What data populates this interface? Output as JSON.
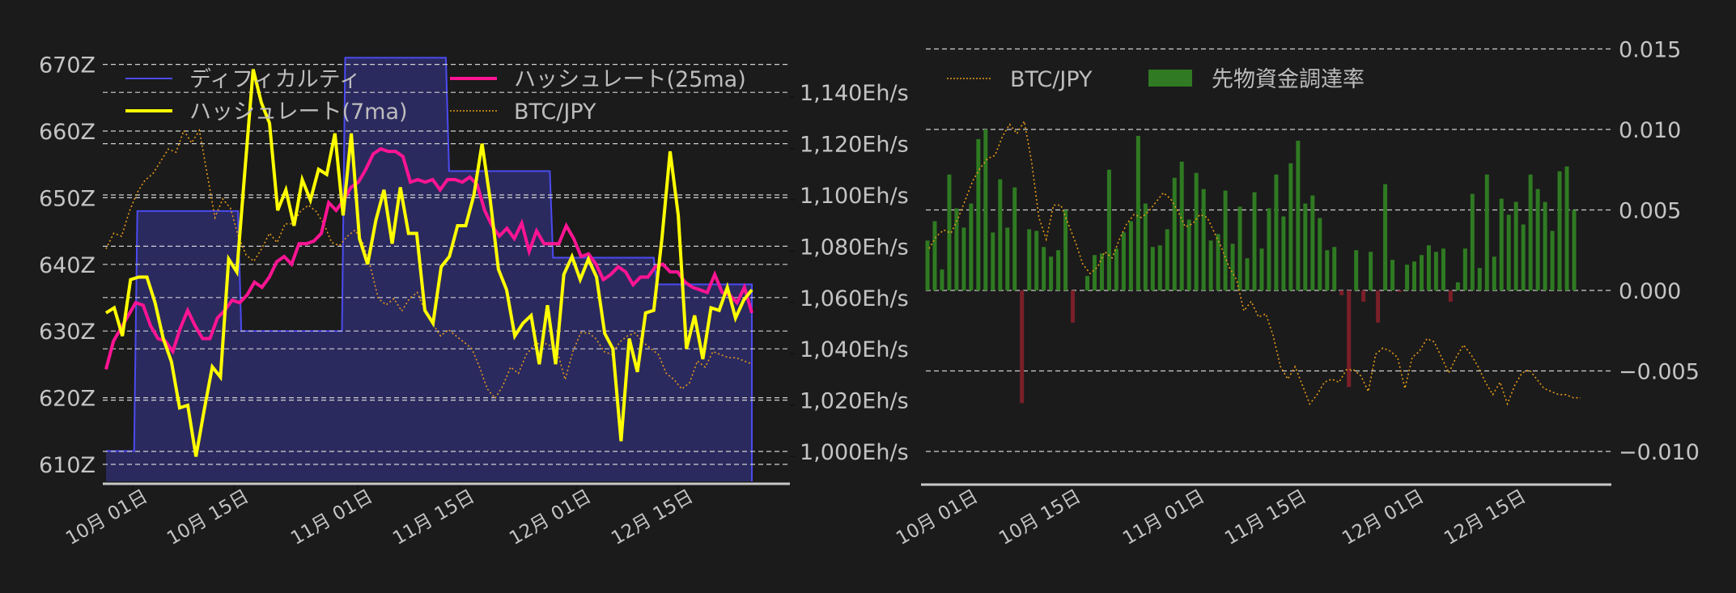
{
  "chart_data": [
    {
      "type": "line",
      "title": "",
      "xlabel": "",
      "x_tick_labels": [
        "10月 01日",
        "10月 15日",
        "11月 01日",
        "11月 15日",
        "12月 01日",
        "12月 15日"
      ],
      "y_left": {
        "label": "",
        "tick_labels": [
          "610Z",
          "620Z",
          "630Z",
          "640Z",
          "650Z",
          "660Z",
          "670Z"
        ],
        "ticks": [
          610,
          620,
          630,
          640,
          650,
          660,
          670
        ],
        "range": [
          609,
          673
        ]
      },
      "y_right": {
        "label": "",
        "tick_labels": [
          "1,000Eh/s",
          "1,020Eh/s",
          "1,040Eh/s",
          "1,060Eh/s",
          "1,080Eh/s",
          "1,100Eh/s",
          "1,120Eh/s",
          "1,140Eh/s"
        ],
        "ticks": [
          1000,
          1020,
          1040,
          1060,
          1080,
          1100,
          1120,
          1140
        ],
        "range": [
          992,
          1151
        ]
      },
      "grid": true,
      "legend": {
        "position": "upper left",
        "entries": [
          {
            "label": "ディフィカルティ",
            "color": "#4b4bf0",
            "style": "solid-thin"
          },
          {
            "label": "ハッシュレート(7ma)",
            "color": "#ffff00",
            "style": "solid-thick"
          },
          {
            "label": "ハッシュレート(25ma)",
            "color": "#ff1493",
            "style": "solid-thick"
          },
          {
            "label": "BTC/JPY",
            "color": "#e69a1a",
            "style": "dotted"
          }
        ]
      },
      "series": [
        {
          "name": "ディフィカルティ",
          "axis": "left",
          "unit": "Z",
          "steps": [
            {
              "from_day": 0,
              "to_day": 3,
              "value": 612
            },
            {
              "from_day": 4,
              "to_day": 17,
              "value": 648
            },
            {
              "from_day": 18,
              "to_day": 31,
              "value": 630
            },
            {
              "from_day": 32,
              "to_day": 45,
              "value": 671
            },
            {
              "from_day": 46,
              "to_day": 59,
              "value": 654
            },
            {
              "from_day": 60,
              "to_day": 73,
              "value": 641
            },
            {
              "from_day": 74,
              "to_day": 87,
              "value": 637
            }
          ]
        },
        {
          "name": "ハッシュレート(7ma)",
          "axis": "right",
          "unit": "Eh/s",
          "values": [
            1054,
            1056,
            1045,
            1067,
            1068,
            1068,
            1058,
            1044,
            1035,
            1017,
            1018,
            998,
            1016,
            1033,
            1029,
            1075,
            1070,
            1110,
            1149,
            1136,
            1128,
            1094,
            1102,
            1088,
            1106,
            1098,
            1110,
            1108,
            1124,
            1092,
            1124,
            1083,
            1073,
            1090,
            1102,
            1081,
            1103,
            1085,
            1085,
            1055,
            1050,
            1072,
            1076,
            1088,
            1088,
            1100,
            1120,
            1098,
            1071,
            1063,
            1045,
            1050,
            1053,
            1034,
            1057,
            1034,
            1069,
            1076,
            1067,
            1075,
            1068,
            1046,
            1040,
            1004,
            1044,
            1031,
            1054,
            1055,
            1083,
            1117,
            1092,
            1040,
            1053,
            1036,
            1056,
            1055,
            1064,
            1052,
            1059,
            1063
          ]
        },
        {
          "name": "ハッシュレート(25ma)",
          "axis": "right",
          "unit": "Eh/s",
          "values": [
            1032,
            1043,
            1048,
            1053,
            1058,
            1057,
            1049,
            1044,
            1043,
            1039,
            1048,
            1055,
            1049,
            1044,
            1044,
            1052,
            1055,
            1059,
            1058,
            1061,
            1066,
            1064,
            1068,
            1074,
            1076,
            1073,
            1081,
            1081,
            1082,
            1085,
            1097,
            1094,
            1098,
            1103,
            1105,
            1110,
            1116,
            1118,
            1117,
            1117,
            1115,
            1105,
            1106,
            1105,
            1106,
            1102,
            1106,
            1106,
            1105,
            1107,
            1104,
            1094,
            1088,
            1084,
            1087,
            1083,
            1089,
            1078,
            1086,
            1081,
            1081,
            1081,
            1088,
            1083,
            1076,
            1077,
            1073,
            1067,
            1069,
            1072,
            1070,
            1065,
            1068,
            1068,
            1072,
            1073,
            1070,
            1070,
            1066,
            1064,
            1063,
            1062,
            1069,
            1062,
            1061,
            1058,
            1064,
            1054
          ]
        },
        {
          "name": "BTC/JPY",
          "axis": "hidden",
          "relative_values": [
            0.5,
            0.55,
            0.54,
            0.62,
            0.68,
            0.72,
            0.74,
            0.78,
            0.82,
            0.81,
            0.88,
            0.84,
            0.88,
            0.74,
            0.6,
            0.66,
            0.63,
            0.54,
            0.48,
            0.46,
            0.5,
            0.55,
            0.52,
            0.58,
            0.58,
            0.62,
            0.64,
            0.62,
            0.58,
            0.52,
            0.51,
            0.54,
            0.56,
            0.52,
            0.44,
            0.34,
            0.32,
            0.34,
            0.3,
            0.34,
            0.36,
            0.3,
            0.26,
            0.22,
            0.24,
            0.22,
            0.2,
            0.18,
            0.12,
            0.05,
            0.02,
            0.06,
            0.12,
            0.1,
            0.16,
            0.19,
            0.2,
            0.19,
            0.17,
            0.08,
            0.17,
            0.23,
            0.23,
            0.21,
            0.17,
            0.16,
            0.2,
            0.22,
            0.23,
            0.2,
            0.18,
            0.16,
            0.1,
            0.08,
            0.05,
            0.07,
            0.14,
            0.12,
            0.17,
            0.16,
            0.15,
            0.15,
            0.14,
            0.13
          ]
        }
      ]
    },
    {
      "type": "bar",
      "title": "",
      "xlabel": "",
      "x_tick_labels": [
        "10月 01日",
        "10月 15日",
        "11月 01日",
        "11月 15日",
        "12月 01日",
        "12月 15日"
      ],
      "y_right": {
        "tick_labels": [
          "0.015",
          "0.010",
          "0.005",
          "0.000",
          "−0.005",
          "−0.010"
        ],
        "ticks": [
          0.015,
          0.01,
          0.005,
          0.0,
          -0.005,
          -0.01
        ],
        "range": [
          -0.0127,
          0.0153
        ]
      },
      "grid": true,
      "legend": {
        "position": "upper left",
        "entries": [
          {
            "label": "BTC/JPY",
            "color": "#e69a1a",
            "style": "dotted"
          },
          {
            "label": "先物資金調達率",
            "color": "#2f7a22",
            "style": "bar"
          }
        ]
      },
      "colors": {
        "positive": "#2f7a22",
        "negative": "#7a1f28"
      },
      "series": [
        {
          "name": "先物資金調達率",
          "values": [
            0.0031,
            0.0043,
            0.0013,
            0.0072,
            0.0051,
            0.0039,
            0.0054,
            0.0094,
            0.01,
            0.0036,
            0.0069,
            0.0039,
            0.0064,
            -0.007,
            0.0038,
            0.0037,
            0.0027,
            0.0021,
            0.0025,
            0.005,
            -0.002,
            0.0,
            0.0009,
            0.0022,
            0.0023,
            0.0075,
            0.0026,
            0.0036,
            0.0043,
            0.0096,
            0.0054,
            0.0027,
            0.0028,
            0.0038,
            0.007,
            0.008,
            0.0044,
            0.0073,
            0.0063,
            0.0031,
            0.0035,
            0.0062,
            0.0029,
            0.0052,
            0.002,
            0.0061,
            0.0026,
            0.0051,
            0.0072,
            0.0046,
            0.0079,
            0.0093,
            0.0054,
            0.0059,
            0.0045,
            0.0025,
            0.0027,
            -0.0003,
            -0.006,
            0.0025,
            -0.0007,
            0.0024,
            -0.002,
            0.0066,
            0.0019,
            -0.0001,
            0.0016,
            0.0018,
            0.0022,
            0.0028,
            0.0024,
            0.0026,
            -0.0007,
            0.0005,
            0.0026,
            0.006,
            0.0014,
            0.0072,
            0.0021,
            0.0057,
            0.0047,
            0.0055,
            0.0041,
            0.0072,
            0.0063,
            0.0055,
            0.0037,
            0.0074,
            0.0077,
            0.005
          ]
        },
        {
          "name": "BTC/JPY",
          "axis": "hidden",
          "relative_values": [
            0.52,
            0.56,
            0.58,
            0.57,
            0.62,
            0.68,
            0.74,
            0.78,
            0.81,
            0.82,
            0.88,
            0.92,
            0.89,
            0.93,
            0.8,
            0.62,
            0.55,
            0.66,
            0.66,
            0.6,
            0.54,
            0.47,
            0.44,
            0.46,
            0.51,
            0.49,
            0.55,
            0.6,
            0.63,
            0.62,
            0.64,
            0.67,
            0.7,
            0.68,
            0.64,
            0.59,
            0.6,
            0.63,
            0.62,
            0.57,
            0.52,
            0.46,
            0.42,
            0.32,
            0.35,
            0.3,
            0.31,
            0.24,
            0.14,
            0.1,
            0.14,
            0.08,
            0.02,
            0.05,
            0.09,
            0.1,
            0.09,
            0.13,
            0.13,
            0.11,
            0.06,
            0.18,
            0.2,
            0.19,
            0.17,
            0.07,
            0.17,
            0.19,
            0.23,
            0.22,
            0.17,
            0.12,
            0.17,
            0.21,
            0.18,
            0.14,
            0.09,
            0.05,
            0.09,
            0.02,
            0.08,
            0.12,
            0.13,
            0.1,
            0.07,
            0.06,
            0.05,
            0.05,
            0.04,
            0.04
          ]
        }
      ]
    }
  ]
}
